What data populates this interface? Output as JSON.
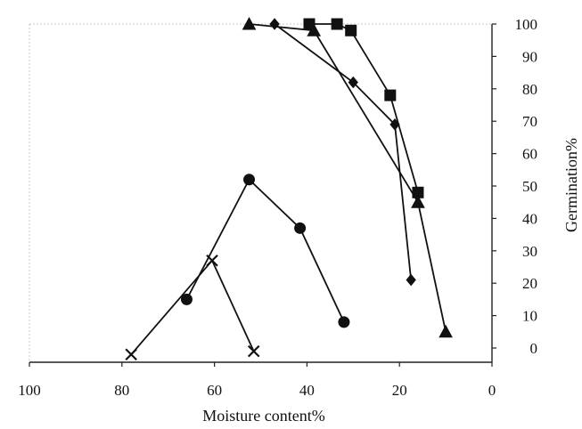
{
  "chart_data": {
    "type": "line",
    "xlabel": "Moisture content%",
    "ylabel": "Germination%",
    "xlim": [
      100,
      0
    ],
    "ylim": [
      0,
      100
    ],
    "x_ticks": [
      100,
      80,
      60,
      40,
      20,
      0
    ],
    "y_ticks": [
      0,
      10,
      20,
      30,
      40,
      50,
      60,
      70,
      80,
      90,
      100
    ],
    "x_tick_labels": [
      "100",
      "80",
      "60",
      "40",
      "20",
      "0"
    ],
    "y_tick_labels": [
      "0",
      "10",
      "20",
      "30",
      "40",
      "50",
      "60",
      "70",
      "80",
      "90",
      "100"
    ],
    "y_axis_side": "right",
    "grid": false,
    "legend": "none",
    "series": [
      {
        "marker": "diamond",
        "x": [
          47,
          30,
          21,
          17.5
        ],
        "y": [
          100,
          82,
          69,
          21
        ]
      },
      {
        "marker": "square",
        "x": [
          39.5,
          33.5,
          30.5,
          22,
          16
        ],
        "y": [
          100,
          100,
          98,
          78,
          48
        ]
      },
      {
        "marker": "triangle",
        "x": [
          52.5,
          38.5,
          16,
          10
        ],
        "y": [
          100,
          98,
          45,
          5
        ]
      },
      {
        "marker": "circle",
        "x": [
          66,
          52.5,
          41.5,
          32
        ],
        "y": [
          15,
          52,
          37,
          8
        ]
      },
      {
        "marker": "x",
        "x": [
          78,
          60.5,
          51.5
        ],
        "y": [
          -2,
          27,
          -1
        ]
      }
    ]
  }
}
